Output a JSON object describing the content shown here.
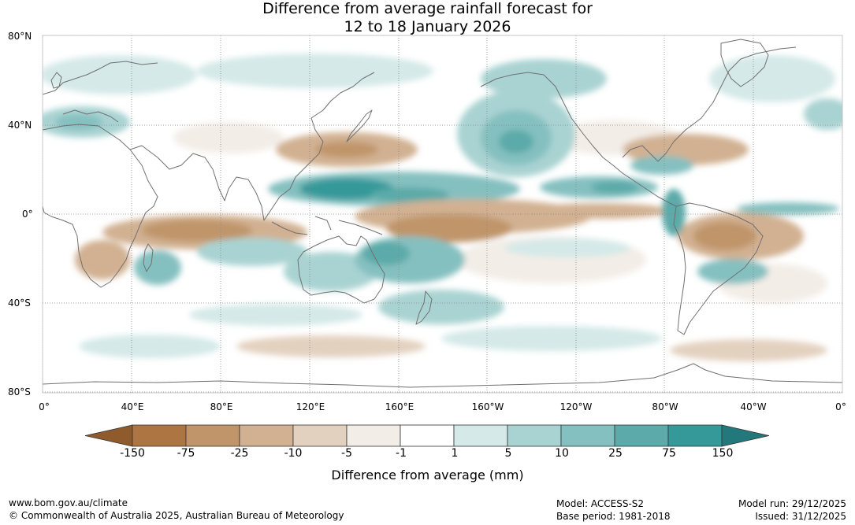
{
  "title_line1": "Difference from average rainfall forecast for",
  "title_line2": "12 to 18 January 2026",
  "lat_labels": [
    "80°N",
    "40°N",
    "0°",
    "40°S",
    "80°S"
  ],
  "lon_labels": [
    "0°",
    "40°E",
    "80°E",
    "120°E",
    "160°E",
    "160°W",
    "120°W",
    "80°W",
    "40°W",
    "0°"
  ],
  "colorbar": {
    "ticks": [
      "-150",
      "-75",
      "-25",
      "-10",
      "-5",
      "-1",
      "1",
      "5",
      "10",
      "25",
      "75",
      "150"
    ],
    "colors": [
      "#ad7541",
      "#c0956a",
      "#d1b192",
      "#e3d1c0",
      "#f3ede7",
      "#ffffff",
      "#d4e9e8",
      "#a9d3d2",
      "#85c0c0",
      "#5caaa9",
      "#35999a",
      "#23787b"
    ],
    "low_extend_color": "#8f5a2c",
    "title": "Difference from average (mm)"
  },
  "footer": {
    "url": "www.bom.gov.au/climate",
    "copyright": "© Commonwealth of Australia 2025, Australian Bureau of Meteorology",
    "model": "Model: ACCESS-S2",
    "base_period": "Base period: 1981-2018",
    "model_run": "Model run: 29/12/2025",
    "issued": "Issued: 31/12/2025"
  }
}
